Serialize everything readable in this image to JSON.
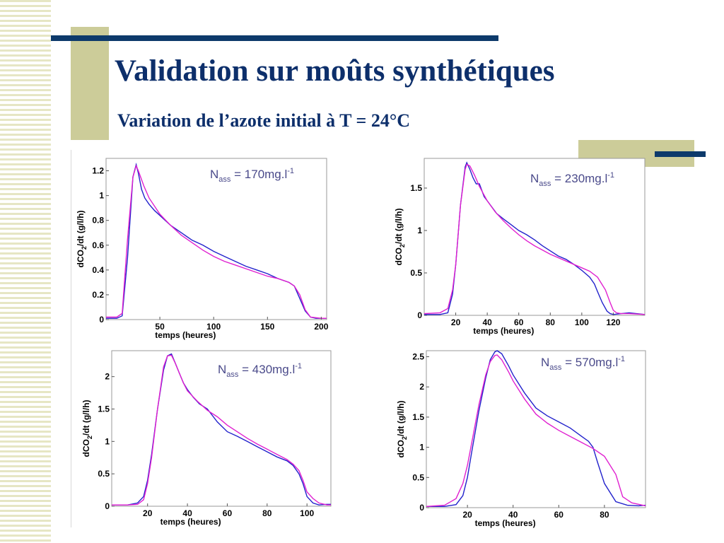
{
  "slide": {
    "title": "Validation sur moûts synthétiques",
    "subtitle": "Variation de l’azote initial à T = 24°C"
  },
  "colors": {
    "accent": "#0d3a6b",
    "olive": "#cccc99",
    "title": "#0d2f6b",
    "measured": "#2222cc",
    "model": "#e020d0"
  },
  "chart_data": [
    {
      "type": "line",
      "title": "",
      "xlabel": "temps (heures)",
      "ylabel": "dCO2/dt (g/l/h)",
      "annotation": {
        "main": "N",
        "sub": "ass",
        "rest": " = 170mg.l",
        "sup": "-1"
      },
      "xlim": [
        0,
        205
      ],
      "ylim": [
        0,
        1.3
      ],
      "xticks": [
        50,
        100,
        150,
        200
      ],
      "yticks": [
        0,
        0.2,
        0.4,
        0.6,
        0.8,
        1,
        1.2
      ],
      "ytick_labels": [
        "0",
        "0.2",
        "0.4",
        "0.6",
        "0.8",
        "1",
        "1.2"
      ],
      "grid": false,
      "series": [
        {
          "x": [
            0,
            10,
            15,
            20,
            25,
            28,
            30,
            33,
            36,
            40,
            45,
            50,
            55,
            60,
            65,
            70,
            75,
            80,
            90,
            100,
            110,
            120,
            130,
            140,
            150,
            160,
            170,
            175,
            180,
            185,
            190,
            195,
            200,
            205
          ],
          "y": [
            0.01,
            0.01,
            0.03,
            0.5,
            1.15,
            1.25,
            1.18,
            1.05,
            0.98,
            0.93,
            0.88,
            0.84,
            0.8,
            0.76,
            0.73,
            0.7,
            0.67,
            0.64,
            0.6,
            0.55,
            0.51,
            0.47,
            0.43,
            0.4,
            0.37,
            0.33,
            0.3,
            0.27,
            0.17,
            0.07,
            0.02,
            0.01,
            0.01,
            0.01
          ]
        },
        {
          "x": [
            0,
            10,
            15,
            20,
            25,
            28,
            30,
            35,
            40,
            50,
            60,
            70,
            80,
            90,
            100,
            110,
            120,
            130,
            140,
            150,
            160,
            170,
            175,
            180,
            185,
            190,
            200,
            205
          ],
          "y": [
            0.02,
            0.02,
            0.05,
            0.65,
            1.15,
            1.24,
            1.2,
            1.08,
            0.98,
            0.85,
            0.76,
            0.68,
            0.62,
            0.56,
            0.51,
            0.47,
            0.44,
            0.41,
            0.38,
            0.35,
            0.33,
            0.3,
            0.27,
            0.2,
            0.08,
            0.02,
            0.01,
            0.01
          ]
        }
      ]
    },
    {
      "type": "line",
      "title": "",
      "xlabel": "temps (heures)",
      "ylabel": "dCO2/dt (g/l/h)",
      "annotation": {
        "main": "N",
        "sub": "ass",
        "rest": " = 230mg.l",
        "sup": "-1"
      },
      "xlim": [
        0,
        140
      ],
      "ylim": [
        0,
        1.85
      ],
      "xticks": [
        20,
        40,
        60,
        80,
        100,
        120
      ],
      "yticks": [
        0,
        0.5,
        1,
        1.5
      ],
      "ytick_labels": [
        "0",
        "0.5",
        "1",
        "1.5"
      ],
      "grid": false,
      "series": [
        {
          "x": [
            0,
            10,
            15,
            18,
            20,
            23,
            26,
            27,
            29,
            31,
            33,
            35,
            38,
            42,
            46,
            50,
            55,
            60,
            65,
            70,
            75,
            80,
            85,
            90,
            95,
            100,
            105,
            108,
            110,
            113,
            116,
            118,
            120,
            125,
            130,
            140
          ],
          "y": [
            0.01,
            0.01,
            0.03,
            0.25,
            0.6,
            1.3,
            1.75,
            1.8,
            1.72,
            1.62,
            1.55,
            1.55,
            1.4,
            1.3,
            1.2,
            1.14,
            1.07,
            1.0,
            0.95,
            0.89,
            0.82,
            0.76,
            0.7,
            0.66,
            0.6,
            0.53,
            0.45,
            0.37,
            0.28,
            0.15,
            0.05,
            0.02,
            0.01,
            0.02,
            0.03,
            0.01
          ]
        },
        {
          "x": [
            0,
            10,
            15,
            18,
            20,
            23,
            26,
            27,
            29,
            32,
            35,
            40,
            45,
            50,
            55,
            60,
            65,
            70,
            80,
            90,
            100,
            105,
            110,
            115,
            118,
            120,
            122,
            125,
            130,
            140
          ],
          "y": [
            0.02,
            0.03,
            0.08,
            0.3,
            0.6,
            1.3,
            1.72,
            1.78,
            1.76,
            1.65,
            1.52,
            1.35,
            1.22,
            1.12,
            1.03,
            0.95,
            0.88,
            0.82,
            0.72,
            0.64,
            0.56,
            0.52,
            0.45,
            0.3,
            0.15,
            0.06,
            0.03,
            0.02,
            0.02,
            0.01
          ]
        }
      ]
    },
    {
      "type": "line",
      "title": "",
      "xlabel": "temps (heures)",
      "ylabel": "dCO2/dt (g/l/h)",
      "annotation": {
        "main": "N",
        "sub": "ass",
        "rest": " = 430mg.l",
        "sup": "-1"
      },
      "xlim": [
        2,
        112
      ],
      "ylim": [
        0,
        2.4
      ],
      "xticks": [
        20,
        40,
        60,
        80,
        100
      ],
      "yticks": [
        0,
        0.5,
        1,
        1.5,
        2
      ],
      "ytick_labels": [
        "0",
        "0.5",
        "1",
        "1.5",
        "2"
      ],
      "grid": false,
      "series": [
        {
          "x": [
            2,
            10,
            15,
            18,
            20,
            22,
            25,
            28,
            30,
            32,
            34,
            36,
            38,
            40,
            43,
            46,
            50,
            55,
            60,
            65,
            70,
            75,
            80,
            85,
            90,
            93,
            96,
            98,
            100,
            103,
            106,
            110,
            112
          ],
          "y": [
            0.02,
            0.02,
            0.05,
            0.15,
            0.4,
            0.8,
            1.5,
            2.1,
            2.32,
            2.35,
            2.2,
            2.05,
            1.9,
            1.8,
            1.68,
            1.58,
            1.5,
            1.3,
            1.15,
            1.08,
            1.0,
            0.92,
            0.84,
            0.76,
            0.7,
            0.63,
            0.5,
            0.35,
            0.15,
            0.05,
            0.02,
            0.03,
            0.03
          ]
        },
        {
          "x": [
            2,
            10,
            15,
            18,
            20,
            22,
            25,
            28,
            30,
            32,
            34,
            36,
            38,
            40,
            45,
            50,
            55,
            60,
            65,
            70,
            75,
            80,
            85,
            90,
            93,
            96,
            98,
            100,
            103,
            106,
            110,
            112
          ],
          "y": [
            0.02,
            0.02,
            0.03,
            0.1,
            0.35,
            0.75,
            1.5,
            2.15,
            2.32,
            2.33,
            2.2,
            2.05,
            1.9,
            1.78,
            1.62,
            1.48,
            1.38,
            1.25,
            1.15,
            1.05,
            0.96,
            0.88,
            0.8,
            0.72,
            0.65,
            0.55,
            0.4,
            0.22,
            0.12,
            0.05,
            0.02,
            0.02
          ]
        }
      ]
    },
    {
      "type": "line",
      "title": "",
      "xlabel": "temps (heures)",
      "ylabel": "dCO2/dt (g/l/h)",
      "annotation": {
        "main": "N",
        "sub": "ass",
        "rest": " = 570mg.l",
        "sup": "-1"
      },
      "xlim": [
        2,
        98
      ],
      "ylim": [
        0,
        2.6
      ],
      "xticks": [
        20,
        40,
        60,
        80
      ],
      "yticks": [
        0,
        0.5,
        1,
        1.5,
        2,
        2.5
      ],
      "ytick_labels": [
        "0",
        "0.5",
        "1",
        "1.5",
        "2",
        "2.5"
      ],
      "grid": false,
      "series": [
        {
          "x": [
            2,
            10,
            15,
            18,
            20,
            22,
            25,
            28,
            30,
            32,
            33,
            35,
            38,
            40,
            45,
            50,
            55,
            60,
            65,
            70,
            73,
            75,
            77,
            80,
            85,
            90,
            95,
            98
          ],
          "y": [
            0.02,
            0.02,
            0.05,
            0.2,
            0.5,
            0.95,
            1.6,
            2.15,
            2.45,
            2.58,
            2.6,
            2.55,
            2.35,
            2.2,
            1.9,
            1.65,
            1.52,
            1.42,
            1.32,
            1.18,
            1.1,
            1.0,
            0.75,
            0.4,
            0.1,
            0.04,
            0.03,
            0.04
          ]
        },
        {
          "x": [
            2,
            10,
            15,
            18,
            20,
            22,
            25,
            28,
            30,
            32,
            33,
            35,
            38,
            40,
            45,
            50,
            55,
            60,
            65,
            70,
            75,
            80,
            85,
            88,
            92,
            98
          ],
          "y": [
            0.02,
            0.04,
            0.15,
            0.4,
            0.7,
            1.1,
            1.7,
            2.2,
            2.42,
            2.52,
            2.53,
            2.45,
            2.25,
            2.1,
            1.8,
            1.55,
            1.4,
            1.28,
            1.18,
            1.08,
            0.98,
            0.85,
            0.55,
            0.18,
            0.08,
            0.03
          ]
        }
      ]
    }
  ]
}
